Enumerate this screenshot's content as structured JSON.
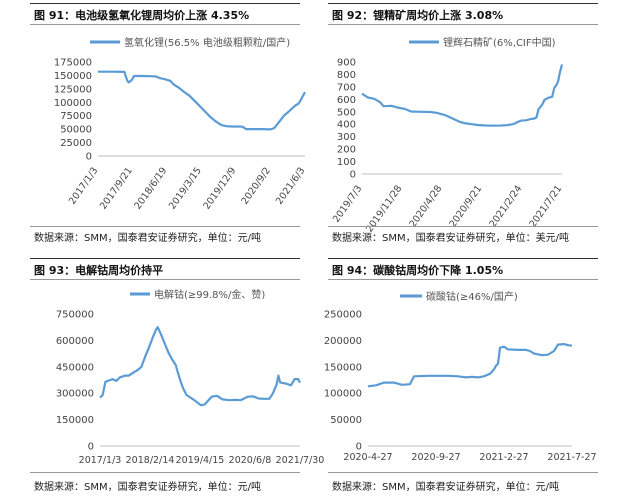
{
  "figures": [
    {
      "title": "图 91：电池级氢氧化锂周均价上涨 4.35%",
      "source": "数据来源：SMM，国泰君安证券研究，单位：元/吨"
    },
    {
      "title": "图 92：锂精矿周均价上涨 3.08%",
      "source": "数据来源：SMM，国泰君安证券研究，单位：美元/吨"
    },
    {
      "title": "图 93：电解钴周均价持平",
      "source": "数据来源：SMM，国泰君安证券研究，单位：元/吨"
    },
    {
      "title": "图 94：碳酸钴周均价下降 1.05%",
      "source": "数据来源：SMM，国泰君安证券研究，单位：元/吨"
    }
  ],
  "chart_data": [
    {
      "type": "line",
      "series": [
        {
          "name": "氢氧化锂(56.5% 电池级粗颗粒/国产)",
          "color": "#5b9bd5"
        }
      ],
      "x_tick_labels": [
        "2017/1/3",
        "2017/9/21",
        "2018/6/19",
        "2019/3/15",
        "2019/12/9",
        "2020/9/2",
        "2021/6/3"
      ],
      "ylim": [
        0,
        175000
      ],
      "y_ticks": [
        0,
        25000,
        50000,
        75000,
        100000,
        125000,
        150000,
        175000
      ],
      "x_range": [
        0,
        235
      ],
      "points": [
        [
          0,
          157000
        ],
        [
          15,
          157000
        ],
        [
          30,
          156500
        ],
        [
          33,
          141000
        ],
        [
          35,
          137000
        ],
        [
          38,
          141000
        ],
        [
          41,
          149000
        ],
        [
          50,
          149000
        ],
        [
          60,
          148500
        ],
        [
          66,
          148000
        ],
        [
          70,
          145000
        ],
        [
          76,
          143000
        ],
        [
          82,
          140000
        ],
        [
          86,
          133000
        ],
        [
          92,
          127000
        ],
        [
          98,
          119000
        ],
        [
          104,
          112000
        ],
        [
          110,
          102000
        ],
        [
          116,
          92000
        ],
        [
          122,
          82000
        ],
        [
          128,
          72000
        ],
        [
          134,
          64000
        ],
        [
          140,
          57500
        ],
        [
          146,
          55500
        ],
        [
          152,
          55000
        ],
        [
          158,
          55000
        ],
        [
          164,
          54500
        ],
        [
          168,
          50000
        ],
        [
          176,
          50000
        ],
        [
          186,
          50000
        ],
        [
          196,
          49500
        ],
        [
          200,
          52000
        ],
        [
          205,
          62000
        ],
        [
          211,
          75000
        ],
        [
          216,
          82000
        ],
        [
          220,
          88000
        ],
        [
          224,
          94000
        ],
        [
          228,
          98000
        ],
        [
          232,
          110000
        ],
        [
          235,
          119000
        ]
      ]
    },
    {
      "type": "line",
      "series": [
        {
          "name": "锂辉石精矿(6%,CIF中国)",
          "color": "#5b9bd5"
        }
      ],
      "x_tick_labels": [
        "2019/7/3",
        "2019/11/28",
        "2020/4/28",
        "2020/9/21",
        "2021/2/24",
        "2021/7/21"
      ],
      "ylim": [
        0,
        900
      ],
      "y_ticks": [
        0,
        100,
        200,
        300,
        400,
        500,
        600,
        700,
        800,
        900
      ],
      "x_range": [
        0,
        204
      ],
      "points": [
        [
          0,
          645
        ],
        [
          6,
          615
        ],
        [
          12,
          605
        ],
        [
          18,
          580
        ],
        [
          22,
          545
        ],
        [
          30,
          548
        ],
        [
          36,
          535
        ],
        [
          44,
          522
        ],
        [
          50,
          502
        ],
        [
          60,
          500
        ],
        [
          70,
          498
        ],
        [
          76,
          492
        ],
        [
          84,
          475
        ],
        [
          88,
          462
        ],
        [
          94,
          440
        ],
        [
          100,
          418
        ],
        [
          106,
          407
        ],
        [
          112,
          400
        ],
        [
          118,
          394
        ],
        [
          126,
          390
        ],
        [
          134,
          389
        ],
        [
          142,
          390
        ],
        [
          148,
          392
        ],
        [
          154,
          400
        ],
        [
          158,
          415
        ],
        [
          162,
          428
        ],
        [
          168,
          432
        ],
        [
          172,
          442
        ],
        [
          176,
          446
        ],
        [
          178,
          455
        ],
        [
          180,
          520
        ],
        [
          184,
          560
        ],
        [
          186,
          595
        ],
        [
          190,
          612
        ],
        [
          194,
          620
        ],
        [
          196,
          690
        ],
        [
          198,
          710
        ],
        [
          200,
          745
        ],
        [
          202,
          820
        ],
        [
          204,
          880
        ]
      ]
    },
    {
      "type": "line",
      "series": [
        {
          "name": "电解钴(≥99.8%/金、赞)",
          "color": "#5b9bd5"
        }
      ],
      "x_tick_labels": [
        "2017/1/3",
        "2018/2/14",
        "2019/4/15",
        "2020/6/8",
        "2021/7/30"
      ],
      "ylim": [
        0,
        750000
      ],
      "y_ticks": [
        0,
        150000,
        300000,
        450000,
        600000,
        750000
      ],
      "x_range": [
        0,
        222
      ],
      "points": [
        [
          0,
          275000
        ],
        [
          3,
          290000
        ],
        [
          6,
          365000
        ],
        [
          10,
          372000
        ],
        [
          14,
          380000
        ],
        [
          18,
          370000
        ],
        [
          22,
          390000
        ],
        [
          28,
          400000
        ],
        [
          32,
          400000
        ],
        [
          38,
          420000
        ],
        [
          42,
          432000
        ],
        [
          46,
          450000
        ],
        [
          50,
          505000
        ],
        [
          54,
          555000
        ],
        [
          58,
          610000
        ],
        [
          62,
          660000
        ],
        [
          64,
          675000
        ],
        [
          68,
          630000
        ],
        [
          72,
          580000
        ],
        [
          76,
          530000
        ],
        [
          80,
          492000
        ],
        [
          84,
          460000
        ],
        [
          88,
          390000
        ],
        [
          92,
          330000
        ],
        [
          96,
          290000
        ],
        [
          102,
          270000
        ],
        [
          108,
          248000
        ],
        [
          112,
          232000
        ],
        [
          116,
          235000
        ],
        [
          120,
          258000
        ],
        [
          124,
          280000
        ],
        [
          130,
          285000
        ],
        [
          136,
          265000
        ],
        [
          144,
          260000
        ],
        [
          150,
          262000
        ],
        [
          156,
          260000
        ],
        [
          164,
          280000
        ],
        [
          170,
          282000
        ],
        [
          176,
          270000
        ],
        [
          182,
          268000
        ],
        [
          188,
          268000
        ],
        [
          192,
          300000
        ],
        [
          196,
          350000
        ],
        [
          198,
          400000
        ],
        [
          200,
          360000
        ],
        [
          206,
          355000
        ],
        [
          212,
          345000
        ],
        [
          216,
          380000
        ],
        [
          220,
          380000
        ],
        [
          222,
          360000
        ]
      ]
    },
    {
      "type": "line",
      "series": [
        {
          "name": "碳酸钴(≥46%/国产)",
          "color": "#5b9bd5"
        }
      ],
      "x_tick_labels": [
        "2020-4-27",
        "2020-9-27",
        "2021-2-27",
        "2021-7-27"
      ],
      "ylim": [
        0,
        250000
      ],
      "y_ticks": [
        0,
        50000,
        100000,
        150000,
        200000,
        250000
      ],
      "x_range": [
        0,
        204
      ],
      "points": [
        [
          0,
          113000
        ],
        [
          8,
          115000
        ],
        [
          16,
          120000
        ],
        [
          26,
          120000
        ],
        [
          34,
          116000
        ],
        [
          42,
          117000
        ],
        [
          46,
          132000
        ],
        [
          60,
          133000
        ],
        [
          70,
          133000
        ],
        [
          80,
          133000
        ],
        [
          90,
          132000
        ],
        [
          98,
          130000
        ],
        [
          104,
          131000
        ],
        [
          110,
          130000
        ],
        [
          116,
          132000
        ],
        [
          122,
          137000
        ],
        [
          126,
          145000
        ],
        [
          128,
          152000
        ],
        [
          130,
          156000
        ],
        [
          132,
          186000
        ],
        [
          136,
          188000
        ],
        [
          140,
          183000
        ],
        [
          150,
          182000
        ],
        [
          158,
          182000
        ],
        [
          162,
          180000
        ],
        [
          166,
          175000
        ],
        [
          174,
          172000
        ],
        [
          180,
          173000
        ],
        [
          186,
          180000
        ],
        [
          190,
          192000
        ],
        [
          196,
          193000
        ],
        [
          200,
          191000
        ],
        [
          204,
          190000
        ]
      ]
    }
  ]
}
